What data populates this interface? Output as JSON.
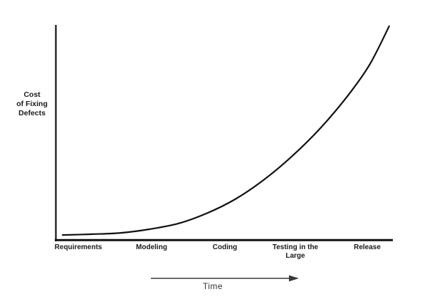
{
  "chart_data": {
    "type": "line",
    "title": "",
    "xlabel": "Time",
    "ylabel": "Cost of Fixing Defects",
    "ylabel_display": "Cost\nof Fixing\nDefects",
    "categories": [
      "Requirements",
      "Modeling",
      "Coding",
      "Testing in the Large",
      "Release"
    ],
    "curve_shape": "exponential-growth",
    "y_axis_numeric": false,
    "grid": false,
    "legend": "none",
    "series": [
      {
        "name": "cost-of-fixing-defects-curve",
        "points_norm": [
          [
            0.021,
            0.026
          ],
          [
            0.11,
            0.03
          ],
          [
            0.194,
            0.036
          ],
          [
            0.278,
            0.053
          ],
          [
            0.363,
            0.079
          ],
          [
            0.447,
            0.126
          ],
          [
            0.532,
            0.192
          ],
          [
            0.616,
            0.281
          ],
          [
            0.7,
            0.391
          ],
          [
            0.785,
            0.523
          ],
          [
            0.869,
            0.679
          ],
          [
            0.932,
            0.821
          ],
          [
            0.989,
            0.997
          ]
        ]
      }
    ],
    "colors": {
      "axis": "#111111",
      "curve": "#111111",
      "label_text": "#1a1a1a",
      "time_arrow": "#3a3a3a",
      "background": "#ffffff"
    }
  }
}
